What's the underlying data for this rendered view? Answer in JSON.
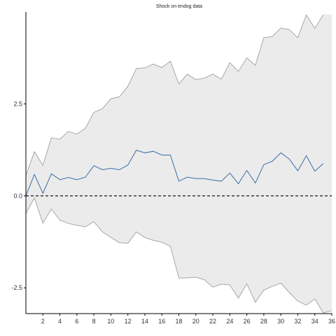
{
  "chart_data": {
    "type": "line",
    "title": "Shock on endog  data",
    "xlabel": "",
    "ylabel": "",
    "xlim": [
      0,
      36
    ],
    "ylim": [
      -3.2,
      5
    ],
    "grid": false,
    "x_ticks": [
      2,
      4,
      6,
      8,
      10,
      12,
      14,
      16,
      18,
      20,
      22,
      24,
      26,
      28,
      30,
      32,
      34,
      36
    ],
    "y_ticks": [
      {
        "value": -2.5,
        "label": "-2.5"
      },
      {
        "value": 0,
        "label": "0.0"
      },
      {
        "value": 2.5,
        "label": "2.5"
      }
    ],
    "reference_line": {
      "y": 0,
      "style": "dashed"
    },
    "x": [
      0,
      1,
      2,
      3,
      4,
      5,
      6,
      7,
      8,
      9,
      10,
      11,
      12,
      13,
      14,
      15,
      16,
      17,
      18,
      19,
      20,
      21,
      22,
      23,
      24,
      25,
      26,
      27,
      28,
      29,
      30,
      31,
      32,
      33,
      34,
      35,
      36
    ],
    "series": [
      {
        "values": [
          0.0,
          0.58,
          0.07,
          0.6,
          0.44,
          0.5,
          0.44,
          0.51,
          0.82,
          0.71,
          0.75,
          0.71,
          0.84,
          1.24,
          1.17,
          1.21,
          1.11,
          1.11,
          0.4,
          0.51,
          0.47,
          0.47,
          0.43,
          0.4,
          0.62,
          0.33,
          0.69,
          0.35,
          0.85,
          0.94,
          1.17,
          1.0,
          0.68,
          1.09,
          0.67,
          0.88,
          null
        ],
        "color": "#3a6ea8"
      }
    ],
    "band": {
      "upper": [
        0.55,
        1.2,
        0.83,
        1.58,
        1.54,
        1.75,
        1.68,
        1.84,
        2.27,
        2.37,
        2.64,
        2.69,
        2.98,
        3.46,
        3.48,
        3.58,
        3.49,
        3.66,
        3.04,
        3.31,
        3.16,
        3.2,
        3.31,
        3.17,
        3.62,
        3.38,
        3.75,
        3.55,
        4.3,
        4.33,
        4.56,
        4.52,
        4.3,
        4.92,
        4.55,
        4.93,
        null
      ],
      "lower": [
        -0.48,
        -0.06,
        -0.74,
        -0.36,
        -0.66,
        -0.75,
        -0.8,
        -0.84,
        -0.7,
        -0.98,
        -1.13,
        -1.27,
        -1.29,
        -0.98,
        -1.13,
        -1.21,
        -1.26,
        -1.37,
        -2.23,
        -2.23,
        -2.21,
        -2.28,
        -2.48,
        -2.4,
        -2.42,
        -2.78,
        -2.39,
        -2.89,
        -2.56,
        -2.46,
        -2.37,
        -2.63,
        -2.86,
        -2.97,
        -2.8,
        -3.18,
        -3.12
      ],
      "fill": "#ebebeb",
      "stroke": "#a8a8a8"
    }
  }
}
